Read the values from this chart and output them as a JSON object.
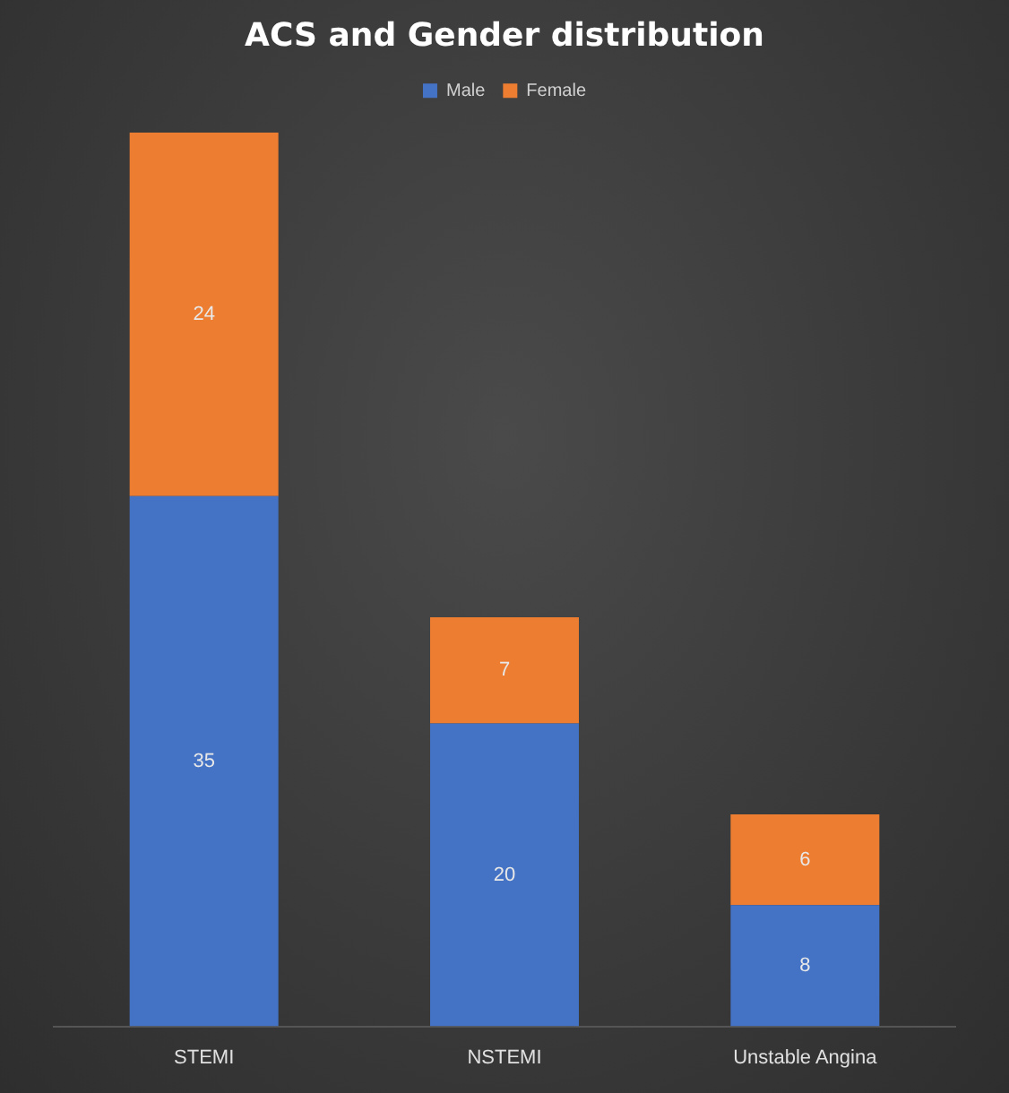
{
  "chart_data": {
    "type": "bar",
    "title": "ACS and Gender distribution",
    "categories": [
      "STEMI",
      "NSTEMI",
      "Unstable Angina"
    ],
    "series": [
      {
        "name": "Male",
        "color": "#4472c4",
        "values": [
          35,
          20,
          8
        ]
      },
      {
        "name": "Female",
        "color": "#ed7d31",
        "values": [
          24,
          7,
          6
        ]
      }
    ],
    "stacked": true,
    "data_labels": true,
    "legend": "top",
    "grid": false
  }
}
